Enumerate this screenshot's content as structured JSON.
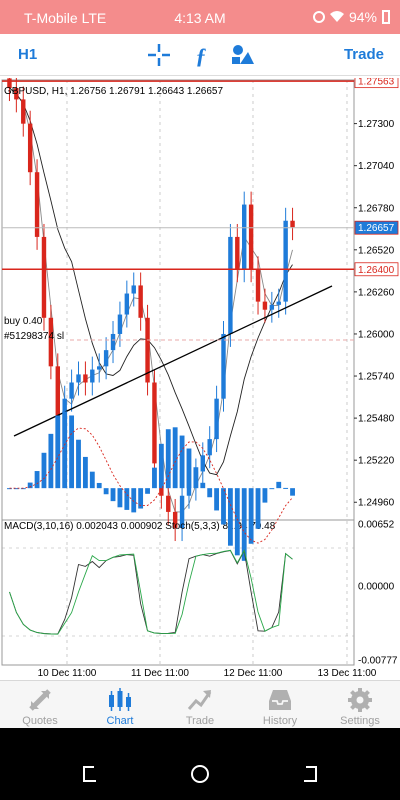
{
  "status_bar": {
    "carrier": "T-Mobile  LTE",
    "time": "4:13 AM",
    "battery": "94%"
  },
  "toolbar": {
    "timeframe": "H1",
    "trade_label": "Trade",
    "icons": [
      "crosshair-icon",
      "function-icon",
      "objects-icon"
    ]
  },
  "chart_header": {
    "text": "GBPUSD, H1, 1.26756 1.26791 1.26643 1.26657"
  },
  "indicator_header": {
    "text": "MACD(3,10,16) 0.002043 0.000902 Stoch(5,3,3) 81.94 79.48"
  },
  "order_labels": {
    "buy": "buy 0.40",
    "ticket": "#51298374 sl"
  },
  "price_scale": [
    "1.27300",
    "1.27040",
    "1.26780",
    "1.26520",
    "1.26260",
    "1.26000",
    "1.25740",
    "1.25480",
    "1.25220",
    "1.24960"
  ],
  "price_tags": {
    "top": "1.27563",
    "current": "1.26657",
    "level": "1.26400"
  },
  "indicator_scale": [
    "0.00652",
    "0.00000",
    "-0.00777"
  ],
  "time_labels": [
    "10 Dec 11:00",
    "11 Dec 11:00",
    "12 Dec 11:00",
    "13 Dec 11:00"
  ],
  "colors": {
    "bull": "#1e7bd9",
    "bear": "#d9261c",
    "line": "#d9261c",
    "grid": "#aaaaaa"
  },
  "tabs": [
    {
      "label": "Quotes",
      "icon": "quotes-icon",
      "active": false
    },
    {
      "label": "Chart",
      "icon": "chart-icon",
      "active": true
    },
    {
      "label": "Trade",
      "icon": "trade-icon",
      "active": false
    },
    {
      "label": "History",
      "icon": "history-icon",
      "active": false
    },
    {
      "label": "Settings",
      "icon": "settings-icon",
      "active": false
    }
  ],
  "chart_data": {
    "type": "candlestick",
    "symbol": "GBPUSD",
    "timeframe": "H1",
    "open": 1.26756,
    "high": 1.26791,
    "low": 1.26643,
    "close": 1.26657,
    "ylim": [
      1.2485,
      1.2757
    ],
    "x_ticks": [
      "10 Dec 11:00",
      "11 Dec 11:00",
      "12 Dec 11:00",
      "13 Dec 11:00"
    ],
    "horizontal_lines": [
      1.27563,
      1.264
    ],
    "current_price": 1.26657,
    "closes": [
      1.2752,
      1.2745,
      1.273,
      1.27,
      1.266,
      1.261,
      1.258,
      1.254,
      1.256,
      1.257,
      1.2575,
      1.257,
      1.2578,
      1.258,
      1.259,
      1.26,
      1.2612,
      1.2625,
      1.263,
      1.261,
      1.257,
      1.252,
      1.25,
      1.249,
      1.248,
      1.25,
      1.2505,
      1.2515,
      1.2525,
      1.2535,
      1.256,
      1.26,
      1.266,
      1.264,
      1.268,
      1.264,
      1.262,
      1.2615,
      1.2618,
      1.262,
      1.267,
      1.2666
    ],
    "macd": {
      "main": 0.002043,
      "signal": 0.000902,
      "ylim": [
        -0.00777,
        0.00652
      ]
    },
    "stochastic": {
      "k": 81.94,
      "d": 79.48
    }
  }
}
